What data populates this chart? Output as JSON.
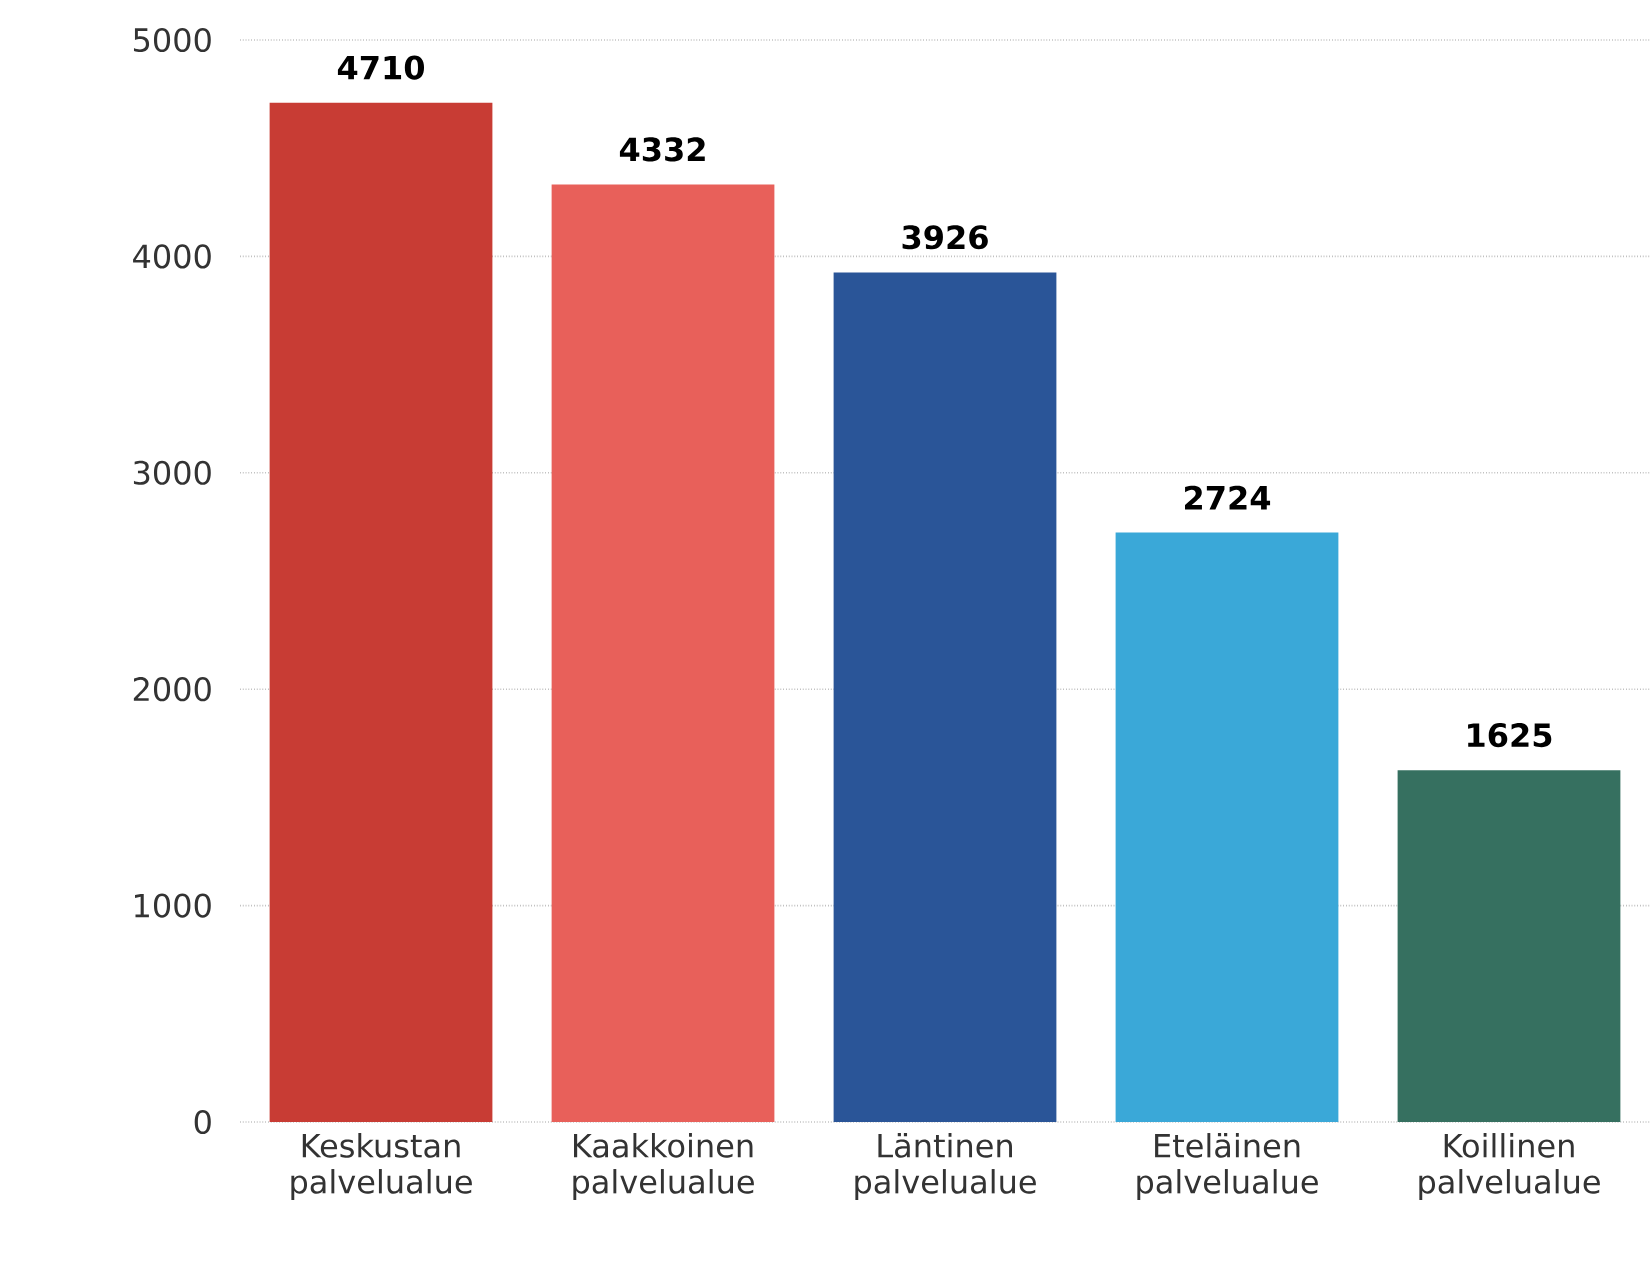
{
  "chart_data": {
    "type": "bar",
    "categories": [
      "Keskustan palvelualue",
      "Kaakkoinen palvelualue",
      "Läntinen palvelualue",
      "Eteläinen palvelualue",
      "Koillinen palvelualue"
    ],
    "values": [
      4710,
      4332,
      3926,
      2724,
      1625
    ],
    "colors": [
      "#c83c34",
      "#e8605a",
      "#2a5598",
      "#3aa8d8",
      "#367060"
    ],
    "ylim": [
      0,
      5000
    ],
    "yticks": [
      0,
      1000,
      2000,
      3000,
      4000,
      5000
    ],
    "grid": "y",
    "data_labels": true
  }
}
